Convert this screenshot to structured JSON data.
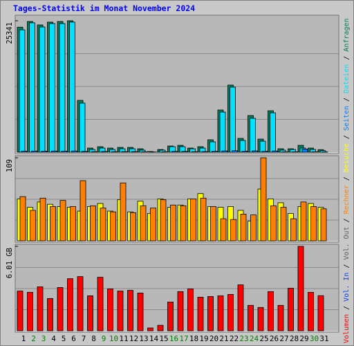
{
  "chart_data": {
    "type": "bar",
    "title": "Tages-Statistik im Monat November 2024",
    "categories": [
      "1",
      "2",
      "3",
      "4",
      "5",
      "6",
      "7",
      "8",
      "9",
      "10",
      "11",
      "12",
      "13",
      "14",
      "15",
      "16",
      "17",
      "18",
      "19",
      "20",
      "21",
      "22",
      "23",
      "24",
      "25",
      "26",
      "27",
      "28",
      "29",
      "30",
      "31"
    ],
    "category_colors": [
      "#000000",
      "#008000",
      "#008000",
      "#000000",
      "#000000",
      "#000000",
      "#000000",
      "#000000",
      "#008000",
      "#008000",
      "#000000",
      "#000000",
      "#000000",
      "#000000",
      "#000000",
      "#008000",
      "#008000",
      "#000000",
      "#000000",
      "#000000",
      "#000000",
      "#000000",
      "#008000",
      "#008000",
      "#000000",
      "#000000",
      "#000000",
      "#000000",
      "#000000",
      "#008000",
      "#000000"
    ],
    "legend_separator": "/",
    "panels": [
      {
        "ylim": [
          0,
          25341
        ],
        "yticks": [
          25341
        ],
        "series": [
          {
            "name": "Anfragen",
            "color": "#008060",
            "values": [
              24100,
              25200,
              24540,
              25080,
              25200,
              25341,
              10000,
              800,
              1070,
              800,
              930,
              930,
              670,
              130,
              530,
              1200,
              1330,
              800,
              1070,
              2400,
              8140,
              12940,
              2670,
              7070,
              2530,
              8000,
              670,
              670,
              1330,
              800,
              500
            ]
          },
          {
            "name": "Dateien",
            "color": "#00e0ff",
            "values": [
              23600,
              24950,
              24140,
              24800,
              24800,
              25080,
              9470,
              530,
              800,
              530,
              670,
              670,
              400,
              50,
              400,
              1070,
              1070,
              670,
              800,
              2000,
              7740,
              12540,
              2270,
              6540,
              2130,
              7600,
              400,
              530,
              800,
              530,
              300
            ]
          },
          {
            "name": "Seiten",
            "color": "#0080ff",
            "values": [
              200,
              220,
              210,
              230,
              220,
              240,
              160,
              110,
              140,
              100,
              110,
              120,
              90,
              20,
              90,
              150,
              160,
              100,
              120,
              180,
              250,
              300,
              200,
              260,
              190,
              240,
              80,
              90,
              600,
              90,
              60
            ]
          }
        ]
      },
      {
        "ylim": [
          0,
          109
        ],
        "yticks": [
          109
        ],
        "series": [
          {
            "name": "Besuche",
            "color": "#ffff00",
            "values": [
              55,
              44,
              51,
              48,
              45,
              44,
              39,
              45,
              49,
              39,
              54,
              38,
              52,
              36,
              55,
              44,
              47,
              55,
              62,
              45,
              44,
              45,
              40,
              26,
              68,
              55,
              50,
              36,
              45,
              49,
              44
            ]
          },
          {
            "name": "Rechner",
            "color": "#ff8000",
            "values": [
              58,
              40,
              56,
              45,
              53,
              45,
              79,
              46,
              43,
              38,
              76,
              37,
              46,
              43,
              54,
              47,
              46,
              55,
              56,
              45,
              29,
              28,
              35,
              34,
              109,
              46,
              44,
              29,
              51,
              45,
              42
            ]
          }
        ]
      },
      {
        "ylim": [
          0,
          6.01
        ],
        "yticks": [
          {
            "value": 6.01,
            "label": "6.01 GB"
          }
        ],
        "series": [
          {
            "name": "Volumen",
            "color": "#ff0000",
            "values": [
              2.83,
              2.74,
              3.13,
              2.3,
              3.08,
              3.71,
              3.86,
              2.49,
              3.81,
              2.98,
              2.83,
              2.88,
              2.69,
              0.2,
              0.39,
              2.05,
              2.79,
              2.98,
              2.39,
              2.44,
              2.49,
              2.59,
              3.27,
              1.81,
              1.66,
              2.79,
              1.81,
              3.03,
              6.01,
              2.74,
              2.5
            ]
          }
        ],
        "legend_only": [
          {
            "name": "Vol. In",
            "color": "#0040ff"
          },
          {
            "name": "Vol. Out",
            "color": "#606060"
          }
        ]
      }
    ]
  }
}
